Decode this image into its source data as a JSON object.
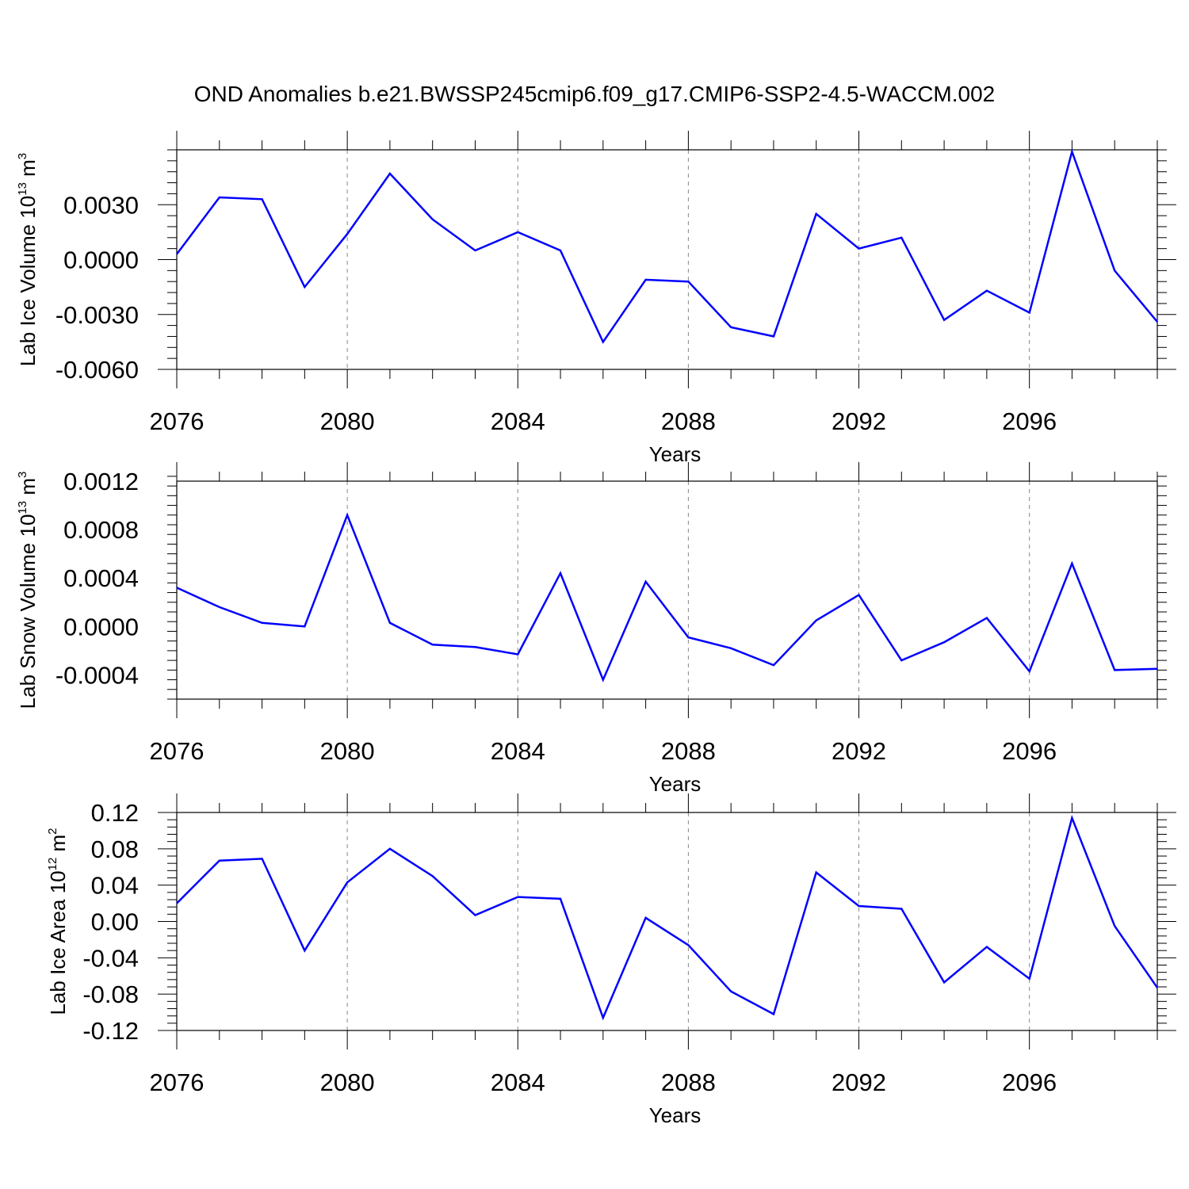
{
  "title": "OND Anomalies b.e21.BWSSP245cmip6.f09_g17.CMIP6-SSP2-4.5-WACCM.002",
  "colors": {
    "line": "#0000ff",
    "axis": "#000000",
    "grid": "#888888"
  },
  "chart_data": [
    {
      "type": "line",
      "ylabel": {
        "prefix": "Lab Ice Volume 10",
        "exp": "13",
        "unit": " m",
        "unit_exp": "3"
      },
      "xlabel": "Years",
      "x": [
        2076,
        2077,
        2078,
        2079,
        2080,
        2081,
        2082,
        2083,
        2084,
        2085,
        2086,
        2087,
        2088,
        2089,
        2090,
        2091,
        2092,
        2093,
        2094,
        2095,
        2096,
        2097,
        2098,
        2099
      ],
      "values": [
        0.0003,
        0.0034,
        0.0033,
        -0.0015,
        0.0014,
        0.0047,
        0.0022,
        0.0005,
        0.0015,
        0.0005,
        -0.0045,
        -0.0011,
        -0.0012,
        -0.0037,
        -0.0042,
        0.0025,
        0.0006,
        0.0012,
        -0.0033,
        -0.0017,
        -0.0029,
        0.0059,
        -0.0006,
        -0.0034
      ],
      "xlim": [
        2076,
        2099
      ],
      "ylim": [
        -0.006,
        0.006
      ],
      "yticks": [
        0.003,
        0.0,
        -0.003,
        -0.006
      ],
      "ytick_labels": [
        "0.0030",
        "0.0000",
        "-0.0030",
        "-0.0060"
      ],
      "xticks": [
        2076,
        2080,
        2084,
        2088,
        2092,
        2096
      ],
      "xtick_labels": [
        "2076",
        "2080",
        "2084",
        "2088",
        "2092",
        "2096"
      ]
    },
    {
      "type": "line",
      "ylabel": {
        "prefix": "Lab Snow Volume 10",
        "exp": "13",
        "unit": " m",
        "unit_exp": "3"
      },
      "xlabel": "Years",
      "x": [
        2076,
        2077,
        2078,
        2079,
        2080,
        2081,
        2082,
        2083,
        2084,
        2085,
        2086,
        2087,
        2088,
        2089,
        2090,
        2091,
        2092,
        2093,
        2094,
        2095,
        2096,
        2097,
        2098,
        2099
      ],
      "values": [
        0.00032,
        0.00016,
        3e-05,
        0.0,
        0.00092,
        3e-05,
        -0.00015,
        -0.00017,
        -0.00023,
        0.00044,
        -0.00044,
        0.00037,
        -9e-05,
        -0.00018,
        -0.00032,
        5e-05,
        0.00026,
        -0.00028,
        -0.00013,
        7e-05,
        -0.00037,
        0.00052,
        -0.00036,
        -0.00035
      ],
      "xlim": [
        2076,
        2099
      ],
      "ylim": [
        -0.0006,
        0.0012
      ],
      "yticks": [
        0.0012,
        0.0008,
        0.0004,
        0.0,
        -0.0004
      ],
      "ytick_labels": [
        "0.0012",
        "0.0008",
        "0.0004",
        "0.0000",
        "-0.0004"
      ],
      "xticks": [
        2076,
        2080,
        2084,
        2088,
        2092,
        2096
      ],
      "xtick_labels": [
        "2076",
        "2080",
        "2084",
        "2088",
        "2092",
        "2096"
      ]
    },
    {
      "type": "line",
      "ylabel": {
        "prefix": "Lab Ice Area 10",
        "exp": "12",
        "unit": " m",
        "unit_exp": "2"
      },
      "xlabel": "Years",
      "x": [
        2076,
        2077,
        2078,
        2079,
        2080,
        2081,
        2082,
        2083,
        2084,
        2085,
        2086,
        2087,
        2088,
        2089,
        2090,
        2091,
        2092,
        2093,
        2094,
        2095,
        2096,
        2097,
        2098,
        2099
      ],
      "values": [
        0.02,
        0.067,
        0.069,
        -0.032,
        0.043,
        0.08,
        0.05,
        0.007,
        0.027,
        0.025,
        -0.106,
        0.004,
        -0.026,
        -0.077,
        -0.102,
        0.054,
        0.017,
        0.014,
        -0.067,
        -0.028,
        -0.063,
        0.114,
        -0.005,
        -0.073
      ],
      "xlim": [
        2076,
        2099
      ],
      "ylim": [
        -0.12,
        0.12
      ],
      "yticks": [
        0.12,
        0.08,
        0.04,
        0.0,
        -0.04,
        -0.08,
        -0.12
      ],
      "ytick_labels": [
        "0.12",
        "0.08",
        "0.04",
        "0.00",
        "-0.04",
        "-0.08",
        "-0.12"
      ],
      "xticks": [
        2076,
        2080,
        2084,
        2088,
        2092,
        2096
      ],
      "xtick_labels": [
        "2076",
        "2080",
        "2084",
        "2088",
        "2092",
        "2096"
      ]
    }
  ]
}
